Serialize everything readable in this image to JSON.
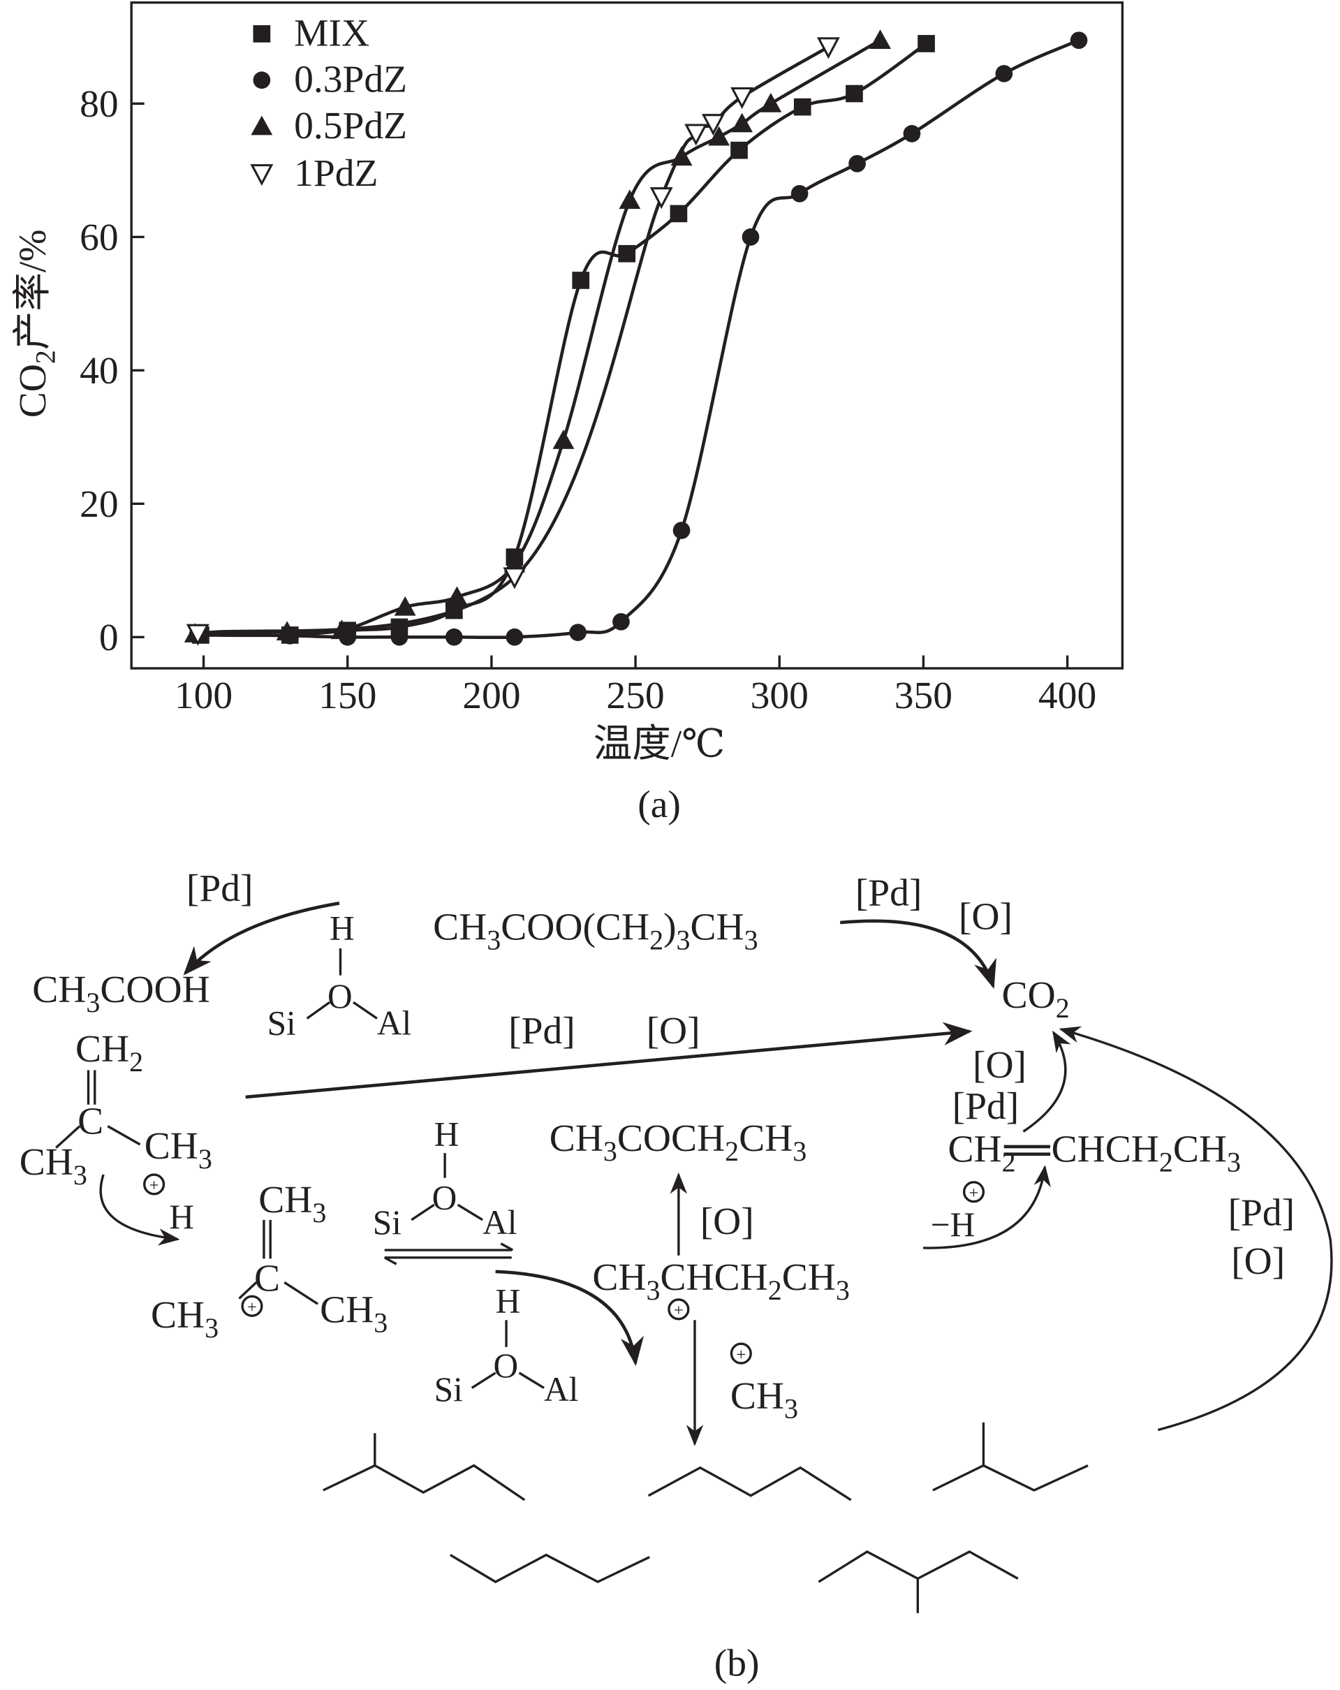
{
  "chart_data": {
    "type": "line",
    "panel_label": "(a)",
    "xlabel": "温度/℃",
    "ylabel": "CO₂产率/%",
    "xlim": [
      75,
      420
    ],
    "ylim": [
      -5,
      95
    ],
    "xticks": [
      100,
      150,
      200,
      250,
      300,
      350,
      400
    ],
    "yticks": [
      0,
      20,
      40,
      60,
      80
    ],
    "grid": false,
    "legend_position": "top-left",
    "series": [
      {
        "name": "MIX",
        "marker": "filled-square",
        "x": [
          99,
          130,
          150,
          168,
          187,
          208,
          231,
          247,
          265,
          286,
          308,
          326,
          351
        ],
        "y": [
          0.3,
          0.3,
          1,
          1.5,
          4,
          12,
          53.5,
          57.5,
          63.5,
          73,
          79.5,
          81.5,
          89
        ]
      },
      {
        "name": "0.3PdZ",
        "marker": "filled-circle",
        "x": [
          98,
          130,
          150,
          168,
          187,
          208,
          230,
          245,
          266,
          290,
          307,
          327,
          346,
          378,
          404
        ],
        "y": [
          0.5,
          0.2,
          0,
          0,
          0,
          0,
          0.7,
          2.3,
          16,
          60,
          66.5,
          71,
          75.5,
          84.5,
          89.5
        ]
      },
      {
        "name": "0.5PdZ",
        "marker": "filled-triangle-up",
        "x": [
          97,
          129,
          148,
          170,
          188,
          208,
          225,
          248,
          266,
          279,
          287,
          297,
          335
        ],
        "y": [
          0.5,
          0.8,
          1,
          4.5,
          6,
          11,
          29.5,
          65.5,
          72,
          75,
          77,
          80,
          89.5
        ]
      },
      {
        "name": "1PdZ",
        "marker": "open-triangle-down",
        "x": [
          98,
          208,
          259,
          271,
          277,
          287,
          317
        ],
        "y": [
          0.5,
          9,
          66,
          75.5,
          77,
          81,
          88.5
        ]
      }
    ]
  },
  "diagram": {
    "panel_label": "(b)",
    "labels": {
      "pd1": "[Pd]",
      "butyl_acetate": "CH₃COO(CH₂)₃CH₃",
      "pd2": "[Pd]",
      "o2": "[O]",
      "acetic_acid": "CH₃COOH",
      "co2": "CO₂",
      "pd3": "[Pd]",
      "o3": "[O]",
      "isobutene_ch2": "CH₂",
      "isobutene_c": "C",
      "isobutene_ch3_left": "CH₃",
      "isobutene_ch3_right": "CH₃",
      "proton_plus": "+",
      "proton_h": "H",
      "o4": "[O]",
      "pd4": "[Pd]",
      "butene_left": "CH₂",
      "butene_right": "CHCH₂CH₃",
      "butanone": "CH₃COCH₂CH₃",
      "o5": "[O]",
      "minus_h_plus": "+",
      "minus_h": "−H",
      "pd5": "[Pd]",
      "o6": "[O]",
      "cation_ch3_top": "CH₃",
      "cation_c": "C",
      "cation_ch3_left": "CH₃",
      "cation_plus": "+",
      "cation_ch3_right": "CH₃",
      "sec_butyl": "CH₃CHCH₂CH₃",
      "sec_butyl_plus": "+",
      "methyl_plus": "+",
      "methyl": "CH₃",
      "zeolite1": {
        "h": "H",
        "o": "O",
        "si": "Si",
        "al": "Al"
      },
      "zeolite2": {
        "h": "H",
        "o": "O",
        "si": "Si",
        "al": "Al"
      },
      "zeolite3": {
        "h": "H",
        "o": "O",
        "si": "Si",
        "al": "Al"
      }
    }
  }
}
